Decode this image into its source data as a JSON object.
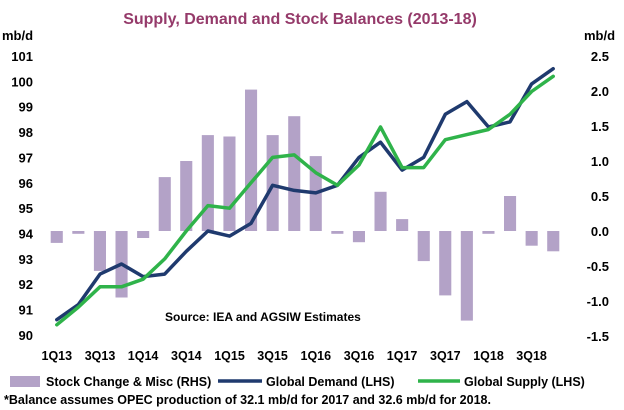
{
  "chart_data": {
    "type": "bar+line",
    "title": "Supply, Demand and Stock Balances (2013-18)",
    "ylabel_left": "mb/d",
    "ylabel_right": "mb/d",
    "ylim_left": [
      90,
      102
    ],
    "ylim_right": [
      -1.5,
      2.5
    ],
    "yticks_left": [
      "90",
      "91",
      "92",
      "93",
      "94",
      "95",
      "96",
      "97",
      "98",
      "99",
      "100",
      "101"
    ],
    "yticks_right": [
      "-1.5",
      "-1.0",
      "-0.5",
      "0.0",
      "0.5",
      "1.0",
      "1.5",
      "2.0",
      "2.5"
    ],
    "x_labels": [
      "1Q13",
      "3Q13",
      "1Q14",
      "3Q14",
      "1Q15",
      "3Q15",
      "1Q16",
      "3Q16",
      "1Q17",
      "3Q17",
      "1Q18",
      "3Q18"
    ],
    "grid": false,
    "annotation": "Source: IEA  and AGSIW Estimates",
    "footnote": "*Balance assumes  OPEC production of 32.1 mb/d for 2017 and 32.6 mb/d for 2018.",
    "series": [
      {
        "name": "Stock Change & Misc (RHS)",
        "type": "bar",
        "axis": "right",
        "color": "#b3a2c7",
        "values": [
          -0.17,
          -0.04,
          -0.57,
          -0.95,
          -0.1,
          0.77,
          1.0,
          1.37,
          1.35,
          2.02,
          1.37,
          1.64,
          1.07,
          -0.04,
          -0.16,
          0.56,
          0.17,
          -0.43,
          -0.92,
          -1.28,
          -0.04,
          0.5,
          -0.21,
          -0.29
        ]
      },
      {
        "name": "Global Demand (LHS)",
        "type": "line",
        "axis": "left",
        "color": "#1f3a6e",
        "values": [
          90.6,
          91.2,
          92.4,
          92.8,
          92.3,
          92.4,
          93.3,
          94.1,
          93.9,
          94.4,
          95.9,
          95.7,
          95.6,
          95.9,
          97.0,
          97.6,
          96.5,
          97.0,
          98.7,
          99.2,
          98.2,
          98.4,
          99.9,
          100.5
        ]
      },
      {
        "name": "Global Supply (LHS)",
        "type": "line",
        "axis": "left",
        "color": "#2fb34a",
        "values": [
          90.4,
          91.1,
          91.9,
          91.9,
          92.2,
          93.0,
          94.1,
          95.1,
          95.0,
          96.0,
          97.0,
          97.1,
          96.4,
          95.9,
          96.7,
          98.2,
          96.6,
          96.6,
          97.7,
          97.9,
          98.1,
          98.7,
          99.6,
          100.2
        ]
      }
    ]
  }
}
